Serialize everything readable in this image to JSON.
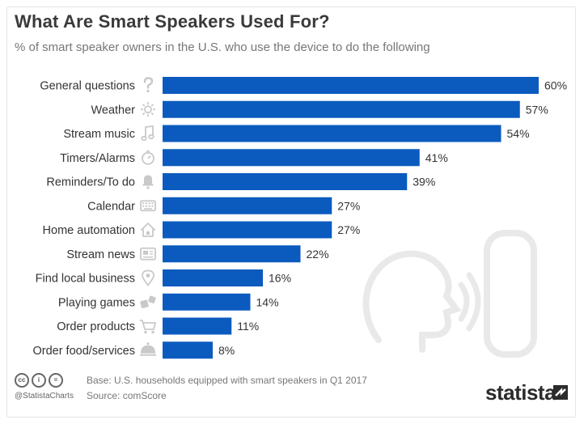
{
  "header": {
    "title": "What Are Smart Speakers Used For?",
    "subtitle": "% of smart speaker owners in the U.S. who use the device to do the following"
  },
  "colors": {
    "bar": "#0b5bbf",
    "label": "#333333",
    "icon": "#c9c9c9",
    "background_art": "#e9e9e9"
  },
  "chart_data": {
    "type": "bar",
    "orientation": "horizontal",
    "categories": [
      "General questions",
      "Weather",
      "Stream music",
      "Timers/Alarms",
      "Reminders/To do",
      "Calendar",
      "Home automation",
      "Stream news",
      "Find local business",
      "Playing games",
      "Order products",
      "Order food/services"
    ],
    "values": [
      60,
      57,
      54,
      41,
      39,
      27,
      27,
      22,
      16,
      14,
      11,
      8
    ],
    "value_labels": [
      "60%",
      "57%",
      "54%",
      "41%",
      "39%",
      "27%",
      "27%",
      "22%",
      "16%",
      "14%",
      "11%",
      "8%"
    ],
    "category_icons": [
      "question-icon",
      "sun-icon",
      "music-note-icon",
      "stopwatch-icon",
      "bell-icon",
      "keyboard-icon",
      "house-icon",
      "newspaper-icon",
      "map-pin-icon",
      "dice-icon",
      "shopping-cart-icon",
      "cloche-icon"
    ],
    "xlim": [
      0,
      60
    ],
    "grid": false,
    "legend": "none"
  },
  "footer": {
    "base": "Base: U.S. households equipped with smart speakers in Q1 2017",
    "source": "Source: comScore",
    "handle": "@StatistaCharts",
    "brand": "statista"
  }
}
